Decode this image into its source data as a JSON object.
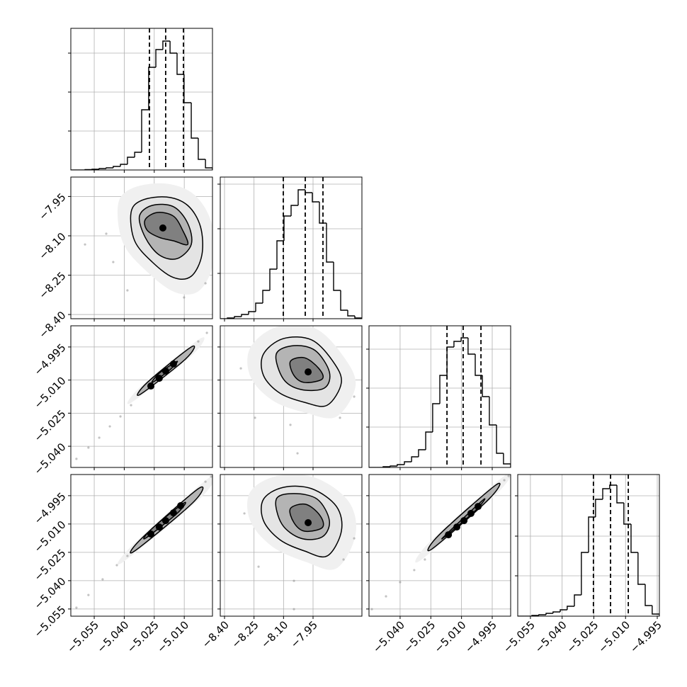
{
  "chart_data": [
    {
      "type": "histogram",
      "color": "#000000",
      "xlim": [
        -5.0667,
        -4.9959
      ],
      "xticks": [
        -5.055,
        -5.04,
        -5.025,
        -5.01
      ],
      "ylim": [
        0,
        200
      ],
      "yticks": [
        55,
        110,
        165
      ],
      "bins": [
        -5.0667,
        -5.0632,
        -5.0596,
        -5.0561,
        -5.0525,
        -5.049,
        -5.0455,
        -5.0419,
        -5.0384,
        -5.0348,
        -5.0313,
        -5.0278,
        -5.0242,
        -5.0207,
        -5.0171,
        -5.0136,
        -5.0101,
        -5.0065,
        -5.003,
        -4.9994,
        -4.9959
      ],
      "values": [
        0,
        0,
        0.5,
        1,
        2,
        3,
        5,
        8,
        18,
        25,
        85,
        145,
        170,
        182,
        165,
        135,
        95,
        45,
        15,
        3
      ],
      "quantiles": [
        -5.0274,
        -5.0193,
        -5.0104
      ]
    },
    {
      "type": "contour",
      "color": "#000000",
      "xlim": [
        -5.0667,
        -4.9959
      ],
      "xticks": [
        -5.055,
        -5.04,
        -5.025,
        -5.01
      ],
      "ylim": [
        -8.416,
        -7.876
      ],
      "yticks": [
        {
          "value": -7.95,
          "label": "−7.95"
        },
        {
          "value": -8.1,
          "label": "−8.10"
        },
        {
          "value": -8.25,
          "label": "−8.25"
        },
        {
          "value": -8.4,
          "label": "−8.40"
        }
      ],
      "points": [
        [
          -5.049,
          -8.092
        ],
        [
          -5.0455,
          -8.2
        ],
        [
          -4.9994,
          -8.281
        ],
        [
          -5.0384,
          -8.308
        ],
        [
          -5.0101,
          -8.335
        ],
        [
          -5.0596,
          -8.133
        ]
      ],
      "contours": [
        [
          [
            -5.0366,
            -8.011
          ],
          [
            -5.0313,
            -7.965
          ],
          [
            -5.0189,
            -7.952
          ],
          [
            -5.0083,
            -7.984
          ],
          [
            -5.0019,
            -8.065
          ],
          [
            -5.0012,
            -8.173
          ],
          [
            -5.0065,
            -8.254
          ],
          [
            -5.0154,
            -8.259
          ],
          [
            -5.026,
            -8.2
          ],
          [
            -5.0348,
            -8.119
          ]
        ],
        [
          [
            -5.0324,
            -8.025
          ],
          [
            -5.026,
            -7.984
          ],
          [
            -5.0154,
            -7.989
          ],
          [
            -5.0083,
            -8.052
          ],
          [
            -5.0065,
            -8.133
          ],
          [
            -5.0136,
            -8.187
          ],
          [
            -5.0225,
            -8.173
          ],
          [
            -5.0295,
            -8.106
          ]
        ],
        [
          [
            -5.0295,
            -8.038
          ],
          [
            -5.0235,
            -8.011
          ],
          [
            -5.0154,
            -8.025
          ],
          [
            -5.0108,
            -8.079
          ],
          [
            -5.0083,
            -8.133
          ],
          [
            -5.0154,
            -8.119
          ],
          [
            -5.0225,
            -8.106
          ],
          [
            -5.0285,
            -8.079
          ]
        ]
      ],
      "peaks": [
        [
          -5.0207,
          -8.07
        ]
      ]
    },
    {
      "type": "histogram",
      "color": "#000000",
      "xlim": [
        -8.4216,
        -7.7016
      ],
      "xticks": [
        -8.4,
        -8.25,
        -8.1,
        -7.95
      ],
      "ylim": [
        0,
        200
      ],
      "yticks": [
        64,
        127,
        190
      ],
      "bins": [
        -8.4216,
        -8.3856,
        -8.3496,
        -8.3136,
        -8.2776,
        -8.2416,
        -8.2056,
        -8.1696,
        -8.1336,
        -8.0976,
        -8.0616,
        -8.0256,
        -7.9896,
        -7.9536,
        -7.9176,
        -7.8816,
        -7.8456,
        -7.8096,
        -7.7736,
        -7.7376,
        -7.7016
      ],
      "values": [
        0,
        1,
        3,
        6,
        10,
        22,
        40,
        70,
        110,
        145,
        160,
        182,
        178,
        165,
        135,
        80,
        40,
        12,
        4,
        1
      ],
      "quantiles": [
        -8.1012,
        -7.9896,
        -7.8996
      ]
    },
    {
      "type": "contour",
      "color": "#000000",
      "xlim": [
        -5.0667,
        -4.9959
      ],
      "xticks": [
        -5.055,
        -5.04,
        -5.025,
        -5.01
      ],
      "ylim": [
        -5.0496,
        -4.9854
      ],
      "yticks": [
        {
          "value": -4.995,
          "label": "−4.995"
        },
        {
          "value": -5.01,
          "label": "−5.010"
        },
        {
          "value": -5.025,
          "label": "−5.025"
        },
        {
          "value": -5.04,
          "label": "−5.040"
        }
      ],
      "points": [
        [
          -5.0639,
          -5.0457
        ],
        [
          -5.0579,
          -5.0406
        ],
        [
          -5.0525,
          -5.0361
        ],
        [
          -5.0472,
          -5.031
        ],
        [
          -5.0419,
          -5.0265
        ],
        [
          -5.0366,
          -5.0214
        ],
        [
          -5.003,
          -4.9925
        ],
        [
          -4.9987,
          -4.9886
        ]
      ],
      "contours": [
        [
          [
            -5.032,
            -5.0165
          ],
          [
            -5.0285,
            -5.0111
          ],
          [
            -5.0065,
            -4.995
          ],
          [
            -5.0094,
            -5.0005
          ]
        ],
        [
          [
            -5.026,
            -5.0111
          ],
          [
            -5.0225,
            -5.0069
          ],
          [
            -5.0136,
            -5.0015
          ],
          [
            -5.0171,
            -5.0053
          ]
        ]
      ],
      "peaks": [
        [
          -5.0267,
          -5.0127
        ],
        [
          -5.0225,
          -5.0092
        ],
        [
          -5.0193,
          -5.0059
        ],
        [
          -5.0154,
          -5.0027
        ]
      ]
    },
    {
      "type": "contour",
      "color": "#000000",
      "xlim": [
        -8.4216,
        -7.7016
      ],
      "xticks": [
        -8.4,
        -8.25,
        -8.1,
        -7.95
      ],
      "ylim": [
        -5.0496,
        -4.9854
      ],
      "yticks": [
        -4.995,
        -5.01,
        -5.025,
        -5.04
      ],
      "points": [
        [
          -8.317,
          -5.0047
        ],
        [
          -8.245,
          -5.0271
        ],
        [
          -8.065,
          -5.0303
        ],
        [
          -7.813,
          -5.0271
        ],
        [
          -7.741,
          -5.0175
        ],
        [
          -8.029,
          -5.0432
        ]
      ],
      "contours": [
        [
          [
            -8.202,
            -4.9982
          ],
          [
            -8.101,
            -4.9912
          ],
          [
            -7.957,
            -4.9918
          ],
          [
            -7.849,
            -5.0015
          ],
          [
            -7.806,
            -5.0111
          ],
          [
            -7.878,
            -5.0214
          ],
          [
            -7.993,
            -5.0201
          ],
          [
            -8.119,
            -5.0159
          ],
          [
            -8.202,
            -5.0079
          ]
        ],
        [
          [
            -8.137,
            -4.9982
          ],
          [
            -8.047,
            -4.9944
          ],
          [
            -7.939,
            -4.9966
          ],
          [
            -7.867,
            -5.0063
          ],
          [
            -7.892,
            -5.0136
          ],
          [
            -8.011,
            -5.0143
          ],
          [
            -8.101,
            -5.0095
          ]
        ],
        [
          [
            -8.065,
            -5.0015
          ],
          [
            -7.993,
            -4.9999
          ],
          [
            -7.921,
            -5.0047
          ],
          [
            -7.903,
            -5.0095
          ],
          [
            -7.993,
            -5.0111
          ],
          [
            -8.047,
            -5.0079
          ]
        ]
      ],
      "peaks": [
        [
          -7.975,
          -5.0063
        ]
      ]
    },
    {
      "type": "histogram",
      "color": "#000000",
      "xlim": [
        -5.0552,
        -4.986
      ],
      "xticks": [
        -5.04,
        -5.025,
        -5.01,
        -4.995
      ],
      "ylim": [
        0,
        200
      ],
      "yticks": [
        57,
        112,
        167
      ],
      "bins": [
        -5.0552,
        -5.0517,
        -5.0483,
        -5.0448,
        -5.0414,
        -5.0379,
        -5.0344,
        -5.031,
        -5.0275,
        -5.0241,
        -5.0206,
        -5.0171,
        -5.0137,
        -5.0102,
        -5.0068,
        -5.0033,
        -4.9998,
        -4.9964,
        -4.9929,
        -4.9895,
        -4.986
      ],
      "values": [
        0,
        0,
        1,
        2,
        4,
        8,
        15,
        25,
        50,
        90,
        130,
        170,
        178,
        183,
        160,
        130,
        100,
        60,
        20,
        5
      ],
      "quantiles": [
        -5.0171,
        -5.0092,
        -5.0005
      ]
    },
    {
      "type": "contour",
      "color": "#000000",
      "xlim": [
        -5.0667,
        -4.9959
      ],
      "xticks": [
        {
          "value": -5.055,
          "label": "−5.055"
        },
        {
          "value": -5.04,
          "label": "−5.040"
        },
        {
          "value": -5.025,
          "label": "−5.025"
        },
        {
          "value": -5.01,
          "label": "−5.010"
        }
      ],
      "ylim": [
        -5.0588,
        -4.9838
      ],
      "yticks": [
        {
          "value": -4.995,
          "label": "−4.995"
        },
        {
          "value": -5.01,
          "label": "−5.010"
        },
        {
          "value": -5.025,
          "label": "−5.025"
        },
        {
          "value": -5.04,
          "label": "−5.040"
        },
        {
          "value": -5.055,
          "label": "−5.055"
        }
      ],
      "points": [
        [
          -5.0639,
          -5.0543
        ],
        [
          -5.0579,
          -5.0476
        ],
        [
          -5.0508,
          -5.0393
        ],
        [
          -5.0437,
          -5.0318
        ],
        [
          -5.0384,
          -5.0269
        ],
        [
          -4.9994,
          -4.9876
        ],
        [
          -4.9966,
          -4.9849
        ]
      ],
      "contours": [
        [
          [
            -5.0348,
            -5.0243
          ],
          [
            -5.0313,
            -5.0176
          ],
          [
            -5.003,
            -4.9913
          ],
          [
            -5.0058,
            -4.9988
          ]
        ],
        [
          [
            -5.0295,
            -5.0176
          ],
          [
            -5.026,
            -5.0123
          ],
          [
            -5.0101,
            -4.9988
          ],
          [
            -5.0136,
            -5.0044
          ]
        ]
      ],
      "peaks": [
        [
          -5.0267,
          -5.0153
        ],
        [
          -5.0225,
          -5.0116
        ],
        [
          -5.0193,
          -5.0082
        ],
        [
          -5.0154,
          -5.0041
        ],
        [
          -5.0118,
          -5.0003
        ]
      ]
    },
    {
      "type": "contour",
      "color": "#000000",
      "xlim": [
        -8.4216,
        -7.7016
      ],
      "xticks": [
        {
          "value": -8.4,
          "label": "−8.40"
        },
        {
          "value": -8.25,
          "label": "−8.25"
        },
        {
          "value": -8.1,
          "label": "−8.10"
        },
        {
          "value": -7.95,
          "label": "−7.95"
        }
      ],
      "ylim": [
        -5.0588,
        -4.9838
      ],
      "yticks": [
        -4.995,
        -5.01,
        -5.025,
        -5.04,
        -5.055
      ],
      "points": [
        [
          -8.299,
          -5.0044
        ],
        [
          -8.227,
          -5.0326
        ],
        [
          -8.047,
          -5.0401
        ],
        [
          -7.795,
          -5.0288
        ],
        [
          -7.741,
          -5.0176
        ],
        [
          -8.047,
          -5.0551
        ]
      ],
      "contours": [
        [
          [
            -8.202,
            -4.9969
          ],
          [
            -8.101,
            -4.9906
          ],
          [
            -7.957,
            -4.9913
          ],
          [
            -7.831,
            -5.0007
          ],
          [
            -7.806,
            -5.0138
          ],
          [
            -7.878,
            -5.0269
          ],
          [
            -7.993,
            -5.0243
          ],
          [
            -8.119,
            -5.0183
          ],
          [
            -8.202,
            -5.0082
          ]
        ],
        [
          [
            -8.137,
            -4.9969
          ],
          [
            -8.047,
            -4.9939
          ],
          [
            -7.928,
            -4.9969
          ],
          [
            -7.867,
            -5.0082
          ],
          [
            -7.903,
            -5.0168
          ],
          [
            -8.011,
            -5.0176
          ],
          [
            -8.108,
            -5.0101
          ]
        ],
        [
          [
            -8.065,
            -5.0018
          ],
          [
            -7.986,
            -4.9996
          ],
          [
            -7.914,
            -5.0056
          ],
          [
            -7.903,
            -5.0119
          ],
          [
            -7.993,
            -5.0138
          ],
          [
            -8.047,
            -5.0093
          ]
        ]
      ],
      "peaks": [
        [
          -7.975,
          -5.0093
        ]
      ]
    },
    {
      "type": "contour",
      "color": "#000000",
      "xlim": [
        -5.0552,
        -4.986
      ],
      "xticks": [
        {
          "value": -5.04,
          "label": "−5.040"
        },
        {
          "value": -5.025,
          "label": "−5.025"
        },
        {
          "value": -5.01,
          "label": "−5.010"
        },
        {
          "value": -4.995,
          "label": "−4.995"
        }
      ],
      "ylim": [
        -5.0588,
        -4.9838
      ],
      "yticks": [
        -4.995,
        -5.01,
        -5.025,
        -5.04,
        -5.055
      ],
      "points": [
        [
          -5.0538,
          -5.0551
        ],
        [
          -5.0469,
          -5.0483
        ],
        [
          -5.04,
          -5.0408
        ],
        [
          -5.0331,
          -5.0344
        ],
        [
          -5.0279,
          -5.0288
        ],
        [
          -4.9891,
          -4.9868
        ],
        [
          -4.987,
          -4.9846
        ]
      ],
      "contours": [
        [
          [
            -5.0244,
            -5.0232
          ],
          [
            -5.0209,
            -5.0157
          ],
          [
            -4.9933,
            -4.9894
          ],
          [
            -4.9967,
            -4.9969
          ]
        ],
        [
          [
            -5.0192,
            -5.0176
          ],
          [
            -5.014,
            -5.0119
          ],
          [
            -4.9991,
            -4.9969
          ],
          [
            -5.0036,
            -5.0033
          ]
        ]
      ],
      "peaks": [
        [
          -5.0164,
          -5.0157
        ],
        [
          -5.0123,
          -5.0116
        ],
        [
          -5.0088,
          -5.0082
        ],
        [
          -5.0054,
          -5.0044
        ],
        [
          -5.0019,
          -5.0007
        ]
      ]
    },
    {
      "type": "histogram",
      "color": "#000000",
      "xlim": [
        -5.061,
        -4.994
      ],
      "xticks": [
        {
          "value": -5.055,
          "label": "−5.055"
        },
        {
          "value": -5.04,
          "label": "−5.040"
        },
        {
          "value": -5.025,
          "label": "−5.025"
        },
        {
          "value": -5.01,
          "label": "−5.010"
        },
        {
          "value": -4.995,
          "label": "−4.995"
        }
      ],
      "ylim": [
        0,
        200
      ],
      "yticks": [
        57,
        113,
        170
      ],
      "bins": [
        -5.061,
        -5.0577,
        -5.0543,
        -5.051,
        -5.0476,
        -5.0443,
        -5.0409,
        -5.0376,
        -5.0342,
        -5.0309,
        -5.0275,
        -5.0242,
        -5.0208,
        -5.0175,
        -5.0141,
        -5.0108,
        -5.0074,
        -5.0041,
        -5.0007,
        -4.9974,
        -4.994
      ],
      "values": [
        0,
        0,
        1,
        2,
        4,
        6,
        9,
        14,
        30,
        90,
        140,
        165,
        180,
        185,
        160,
        130,
        90,
        45,
        15,
        3
      ],
      "quantiles": [
        -5.0252,
        -5.0171,
        -5.0087
      ]
    }
  ]
}
